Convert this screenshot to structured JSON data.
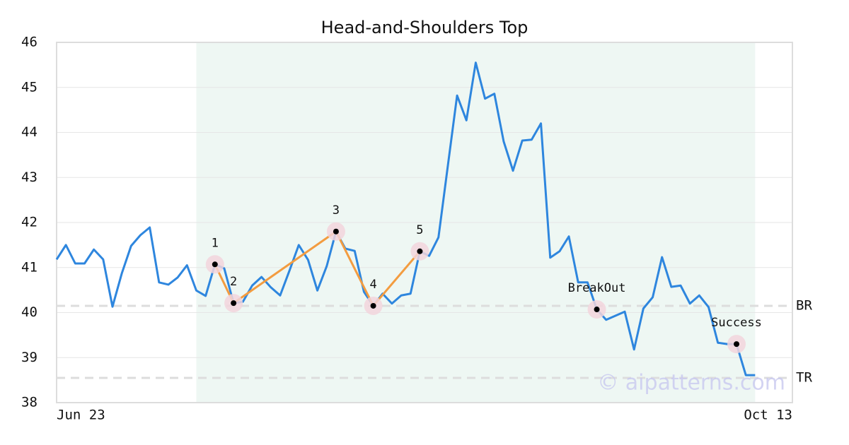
{
  "chart_data": {
    "type": "line",
    "title": "Head-and-Shoulders Top",
    "series": [
      {
        "color": "#2e86de",
        "values": [
          41.18,
          41.5,
          41.09,
          41.09,
          41.4,
          41.18,
          40.13,
          40.87,
          41.48,
          41.72,
          41.89,
          40.67,
          40.62,
          40.78,
          41.05,
          40.49,
          40.37,
          41.07,
          40.98,
          40.21,
          40.24,
          40.6,
          40.79,
          40.56,
          40.38,
          40.93,
          41.5,
          41.17,
          40.49,
          41.03,
          41.8,
          41.42,
          41.37,
          40.46,
          40.15,
          40.42,
          40.2,
          40.38,
          40.42,
          41.36,
          41.26,
          41.67,
          43.25,
          44.82,
          44.27,
          45.55,
          44.75,
          44.86,
          43.8,
          43.15,
          43.82,
          43.84,
          44.2,
          41.22,
          41.36,
          41.69,
          40.67,
          40.67,
          40.07,
          39.84,
          39.93,
          40.02,
          39.18,
          40.09,
          40.34,
          41.23,
          40.57,
          40.6,
          40.2,
          40.38,
          40.12,
          39.33,
          39.3,
          39.3,
          38.61,
          38.61
        ]
      }
    ],
    "pattern_range": [
      15,
      75
    ],
    "pattern": {
      "color": "#f39c40",
      "labels": [
        "1",
        "2",
        "3",
        "4",
        "5"
      ],
      "index": [
        17,
        19,
        30,
        34,
        39
      ],
      "values": [
        41.07,
        40.21,
        41.8,
        40.15,
        41.36
      ]
    },
    "annotations": [
      {
        "text": "BreakOut",
        "index": 58,
        "value": 40.07
      },
      {
        "text": "Success",
        "index": 73,
        "value": 39.3
      }
    ],
    "reference_lines": [
      {
        "label": "BR",
        "value": 40.15
      },
      {
        "label": "TR",
        "value": 38.55
      }
    ],
    "xlim": [
      0,
      79
    ],
    "xticks": [
      {
        "value": 0,
        "label": "Jun 23"
      },
      {
        "value": 79,
        "label": "Oct 13"
      }
    ],
    "ylim": [
      38,
      46
    ],
    "yticks": [
      38,
      39,
      40,
      41,
      42,
      43,
      44,
      45,
      46
    ],
    "grid": true,
    "watermark": "© aipatterns.com"
  }
}
